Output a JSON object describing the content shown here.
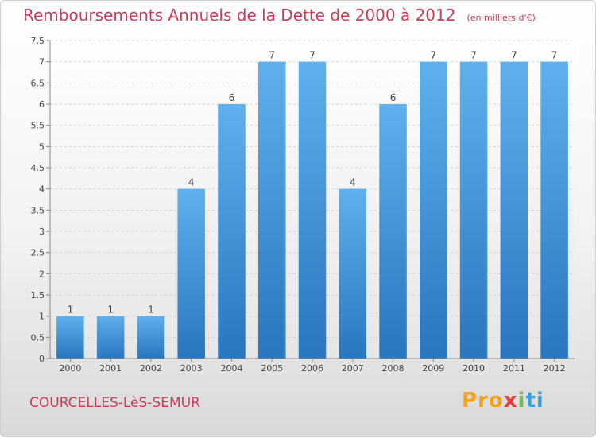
{
  "header": {
    "title": "Remboursements Annuels de la Dette de 2000 à 2012",
    "unit": "(en milliers d'€)"
  },
  "footer": {
    "town": "COURCELLES-LèS-SEMUR",
    "brand_parts": [
      "Pro",
      "x",
      "i",
      "ti"
    ]
  },
  "chart_data": {
    "type": "bar",
    "categories": [
      "2000",
      "2001",
      "2002",
      "2003",
      "2004",
      "2005",
      "2006",
      "2007",
      "2008",
      "2009",
      "2010",
      "2011",
      "2012"
    ],
    "values": [
      1,
      1,
      1,
      4,
      6,
      7,
      7,
      4,
      6,
      7,
      7,
      7,
      7
    ],
    "ylim": [
      0,
      7.5
    ],
    "yticks": [
      0,
      0.5,
      1,
      1.5,
      2,
      2.5,
      3,
      3.5,
      4,
      4.5,
      5,
      5.5,
      6,
      6.5,
      7,
      7.5
    ],
    "grid": true,
    "bar_color": "#3c8fd6",
    "title_color": "#cf3a57"
  }
}
